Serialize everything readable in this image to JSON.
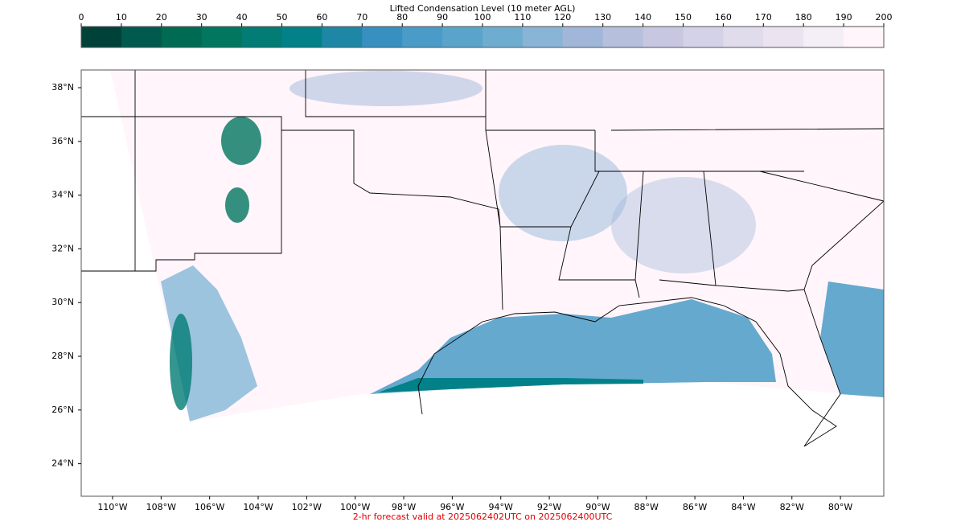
{
  "colorbar": {
    "label": "Lifted Condensation Level (10 meter AGL)",
    "ticks": [
      0,
      10,
      20,
      30,
      40,
      50,
      60,
      70,
      80,
      90,
      100,
      110,
      120,
      130,
      140,
      150,
      160,
      170,
      180,
      190,
      200
    ],
    "colors": [
      "#00413a",
      "#015a4d",
      "#016a52",
      "#02765f",
      "#027c74",
      "#028189",
      "#1f87a6",
      "#3790bf",
      "#4a9bc7",
      "#5aa4cc",
      "#6eacd0",
      "#89b4d6",
      "#a1b7d9",
      "#b6bfdc",
      "#c7c7e1",
      "#d4d2e8",
      "#e0dcec",
      "#ebe3f0",
      "#f4eef6",
      "#fff5fa"
    ]
  },
  "map": {
    "lat_ticks": [
      {
        "value": 38,
        "label": "38°N"
      },
      {
        "value": 36,
        "label": "36°N"
      },
      {
        "value": 34,
        "label": "34°N"
      },
      {
        "value": 32,
        "label": "32°N"
      },
      {
        "value": 30,
        "label": "30°N"
      },
      {
        "value": 28,
        "label": "28°N"
      },
      {
        "value": 26,
        "label": "26°N"
      },
      {
        "value": 24,
        "label": "24°N"
      }
    ],
    "lon_ticks": [
      {
        "value": -110,
        "label": "110°W"
      },
      {
        "value": -108,
        "label": "108°W"
      },
      {
        "value": -106,
        "label": "106°W"
      },
      {
        "value": -104,
        "label": "104°W"
      },
      {
        "value": -102,
        "label": "102°W"
      },
      {
        "value": -100,
        "label": "100°W"
      },
      {
        "value": -98,
        "label": "98°W"
      },
      {
        "value": -96,
        "label": "96°W"
      },
      {
        "value": -94,
        "label": "94°W"
      },
      {
        "value": -92,
        "label": "92°W"
      },
      {
        "value": -90,
        "label": "90°W"
      },
      {
        "value": -88,
        "label": "88°W"
      },
      {
        "value": -86,
        "label": "86°W"
      },
      {
        "value": -84,
        "label": "84°W"
      },
      {
        "value": -82,
        "label": "82°W"
      },
      {
        "value": -80,
        "label": "80°W"
      }
    ]
  },
  "footer": "2-hr forecast valid at 2025062402UTC on 2025062400UTC"
}
